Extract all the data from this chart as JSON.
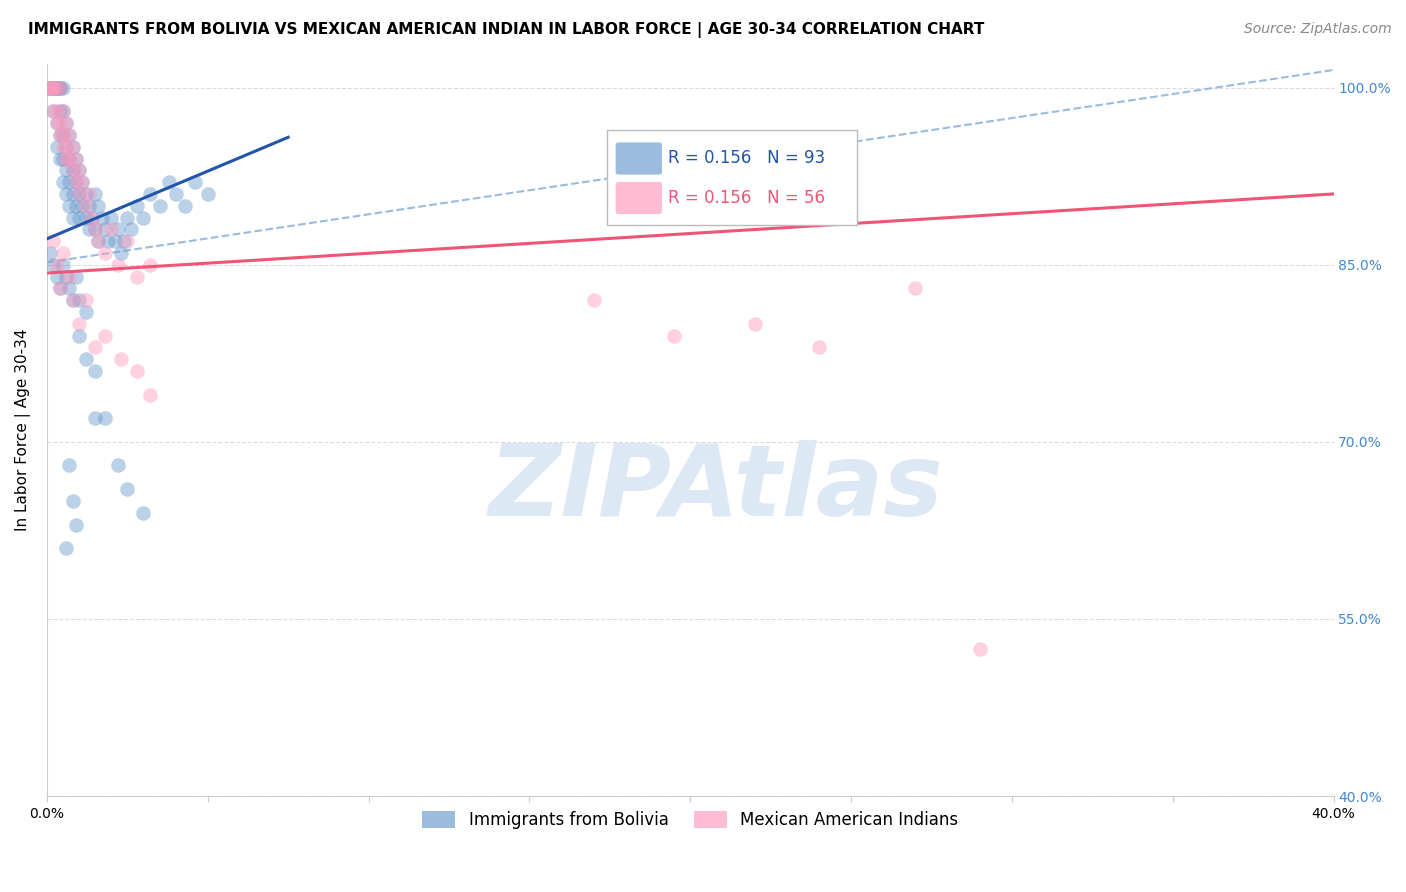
{
  "title": "IMMIGRANTS FROM BOLIVIA VS MEXICAN AMERICAN INDIAN IN LABOR FORCE | AGE 30-34 CORRELATION CHART",
  "source": "Source: ZipAtlas.com",
  "ylabel": "In Labor Force | Age 30-34",
  "legend_blue_label": "Immigrants from Bolivia",
  "legend_pink_label": "Mexican American Indians",
  "legend_blue_R": "R = 0.156",
  "legend_blue_N": "N = 93",
  "legend_pink_R": "R = 0.156",
  "legend_pink_N": "N = 56",
  "xmin": 0.0,
  "xmax": 0.4,
  "ymin": 0.4,
  "ymax": 1.02,
  "yticks": [
    0.4,
    0.55,
    0.7,
    0.85,
    1.0
  ],
  "ytick_labels": [
    "40.0%",
    "55.0%",
    "70.0%",
    "85.0%",
    "100.0%"
  ],
  "xticks": [
    0.0,
    0.05,
    0.1,
    0.15,
    0.2,
    0.25,
    0.3,
    0.35,
    0.4
  ],
  "xtick_labels": [
    "0.0%",
    "",
    "",
    "",
    "",
    "",
    "",
    "",
    "40.0%"
  ],
  "blue_color": "#6699cc",
  "pink_color": "#ff99bb",
  "blue_line_color": "#2255aa",
  "pink_line_color": "#ee5577",
  "dashed_line_color": "#99bbdd",
  "watermark_color": "#dde8f5",
  "blue_scatter_x": [
    0.001,
    0.001,
    0.001,
    0.002,
    0.002,
    0.002,
    0.002,
    0.003,
    0.003,
    0.003,
    0.003,
    0.003,
    0.004,
    0.004,
    0.004,
    0.004,
    0.004,
    0.005,
    0.005,
    0.005,
    0.005,
    0.005,
    0.006,
    0.006,
    0.006,
    0.006,
    0.007,
    0.007,
    0.007,
    0.007,
    0.008,
    0.008,
    0.008,
    0.008,
    0.009,
    0.009,
    0.009,
    0.01,
    0.01,
    0.01,
    0.011,
    0.011,
    0.012,
    0.012,
    0.013,
    0.013,
    0.014,
    0.015,
    0.015,
    0.016,
    0.016,
    0.017,
    0.018,
    0.019,
    0.02,
    0.021,
    0.022,
    0.023,
    0.024,
    0.025,
    0.026,
    0.028,
    0.03,
    0.032,
    0.035,
    0.038,
    0.04,
    0.043,
    0.046,
    0.05,
    0.001,
    0.002,
    0.003,
    0.004,
    0.005,
    0.006,
    0.007,
    0.008,
    0.009,
    0.01,
    0.012,
    0.015,
    0.018,
    0.022,
    0.025,
    0.03,
    0.01,
    0.012,
    0.015,
    0.007,
    0.008,
    0.009,
    0.006
  ],
  "blue_scatter_y": [
    1.0,
    1.0,
    1.0,
    1.0,
    1.0,
    1.0,
    0.98,
    1.0,
    1.0,
    1.0,
    0.97,
    0.95,
    1.0,
    1.0,
    0.98,
    0.96,
    0.94,
    1.0,
    0.98,
    0.96,
    0.94,
    0.92,
    0.97,
    0.95,
    0.93,
    0.91,
    0.96,
    0.94,
    0.92,
    0.9,
    0.95,
    0.93,
    0.91,
    0.89,
    0.94,
    0.92,
    0.9,
    0.93,
    0.91,
    0.89,
    0.92,
    0.9,
    0.91,
    0.89,
    0.9,
    0.88,
    0.89,
    0.91,
    0.88,
    0.9,
    0.87,
    0.89,
    0.88,
    0.87,
    0.89,
    0.87,
    0.88,
    0.86,
    0.87,
    0.89,
    0.88,
    0.9,
    0.89,
    0.91,
    0.9,
    0.92,
    0.91,
    0.9,
    0.92,
    0.91,
    0.86,
    0.85,
    0.84,
    0.83,
    0.85,
    0.84,
    0.83,
    0.82,
    0.84,
    0.82,
    0.81,
    0.76,
    0.72,
    0.68,
    0.66,
    0.64,
    0.79,
    0.77,
    0.72,
    0.68,
    0.65,
    0.63,
    0.61
  ],
  "pink_scatter_x": [
    0.001,
    0.001,
    0.002,
    0.002,
    0.002,
    0.003,
    0.003,
    0.003,
    0.004,
    0.004,
    0.004,
    0.005,
    0.005,
    0.005,
    0.006,
    0.006,
    0.006,
    0.007,
    0.007,
    0.008,
    0.008,
    0.009,
    0.009,
    0.01,
    0.01,
    0.011,
    0.012,
    0.013,
    0.014,
    0.015,
    0.016,
    0.018,
    0.02,
    0.022,
    0.025,
    0.028,
    0.032,
    0.002,
    0.003,
    0.004,
    0.005,
    0.007,
    0.008,
    0.01,
    0.012,
    0.015,
    0.018,
    0.023,
    0.028,
    0.032,
    0.17,
    0.27,
    0.22,
    0.24,
    0.195,
    0.29
  ],
  "pink_scatter_y": [
    1.0,
    1.0,
    1.0,
    1.0,
    0.98,
    1.0,
    0.98,
    0.97,
    1.0,
    0.97,
    0.96,
    0.98,
    0.96,
    0.95,
    0.97,
    0.95,
    0.94,
    0.96,
    0.94,
    0.95,
    0.93,
    0.94,
    0.92,
    0.93,
    0.91,
    0.92,
    0.9,
    0.91,
    0.89,
    0.88,
    0.87,
    0.86,
    0.88,
    0.85,
    0.87,
    0.84,
    0.85,
    0.87,
    0.85,
    0.83,
    0.86,
    0.84,
    0.82,
    0.8,
    0.82,
    0.78,
    0.79,
    0.77,
    0.76,
    0.74,
    0.82,
    0.83,
    0.8,
    0.78,
    0.79,
    0.525
  ],
  "blue_line_x": [
    0.0,
    0.075
  ],
  "blue_line_y": [
    0.872,
    0.958
  ],
  "pink_line_x": [
    0.0,
    0.4
  ],
  "pink_line_y": [
    0.843,
    0.91
  ],
  "dashed_line_x": [
    0.0,
    0.4
  ],
  "dashed_line_y": [
    0.852,
    1.015
  ],
  "title_fontsize": 11,
  "axis_label_fontsize": 11,
  "tick_fontsize": 10,
  "source_fontsize": 10,
  "marker_size": 110,
  "marker_alpha": 0.45,
  "background_color": "#ffffff",
  "axis_color": "#cccccc",
  "tick_color_right": "#4488cc",
  "grid_color": "#cccccc",
  "grid_alpha": 0.7,
  "grid_linestyle": "--"
}
